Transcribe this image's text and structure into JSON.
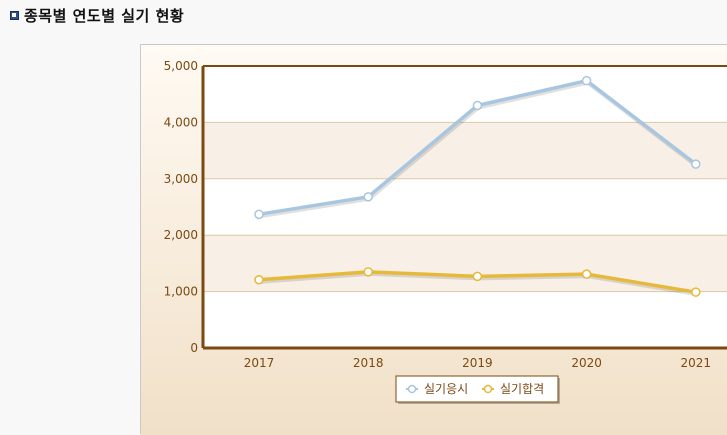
{
  "page": {
    "title": "종목별 연도별 실기 현황"
  },
  "chart_data": {
    "type": "line",
    "categories": [
      "2017",
      "2018",
      "2019",
      "2020",
      "2021"
    ],
    "series": [
      {
        "name": "실기응시",
        "values": [
          2370,
          2680,
          4300,
          4740,
          3260
        ],
        "color": "#a8c6df"
      },
      {
        "name": "실기합격",
        "values": [
          1210,
          1350,
          1270,
          1310,
          990
        ],
        "color": "#e6b93a"
      }
    ],
    "ylim": [
      0,
      5000
    ],
    "yticks": [
      0,
      1000,
      2000,
      3000,
      4000,
      5000
    ],
    "ytick_labels": [
      "0",
      "1,000",
      "2,000",
      "3,000",
      "4,000",
      "5,000"
    ],
    "grid": true,
    "legend_position": "bottom-center"
  }
}
